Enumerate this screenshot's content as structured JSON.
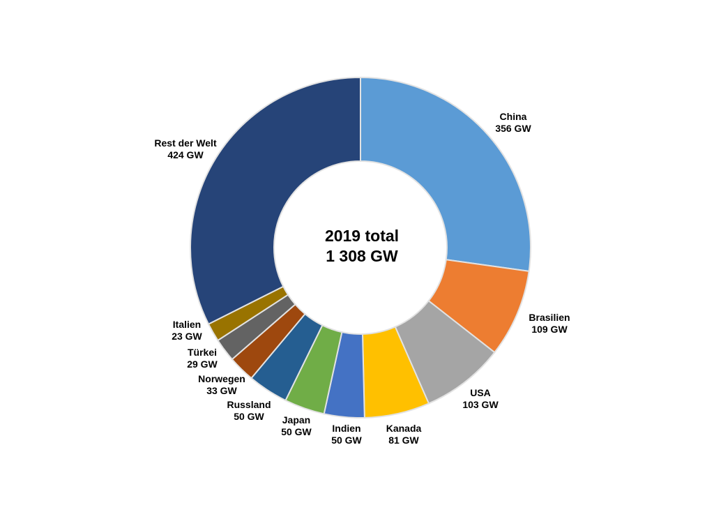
{
  "chart_data": {
    "type": "pie",
    "variant": "donut",
    "center_label": {
      "line1": "2019 total",
      "line2": "1 308 GW"
    },
    "unit": "GW",
    "slices": [
      {
        "name": "China",
        "value": 356,
        "label": "356 GW",
        "color": "#5B9BD5"
      },
      {
        "name": "Brasilien",
        "value": 109,
        "label": "109 GW",
        "color": "#ED7D31"
      },
      {
        "name": "USA",
        "value": 103,
        "label": "103 GW",
        "color": "#A5A5A5"
      },
      {
        "name": "Kanada",
        "value": 81,
        "label": "81 GW",
        "color": "#FFC000"
      },
      {
        "name": "Indien",
        "value": 50,
        "label": "50 GW",
        "color": "#4472C4"
      },
      {
        "name": "Japan",
        "value": 50,
        "label": "50 GW",
        "color": "#70AD47"
      },
      {
        "name": "Russland",
        "value": 50,
        "label": "50 GW",
        "color": "#255E91"
      },
      {
        "name": "Norwegen",
        "value": 33,
        "label": "33 GW",
        "color": "#9E480E"
      },
      {
        "name": "Türkei",
        "value": 29,
        "label": "29 GW",
        "color": "#636363"
      },
      {
        "name": "Italien",
        "value": 23,
        "label": "23 GW",
        "color": "#997300"
      },
      {
        "name": "Rest der Welt",
        "value": 424,
        "label": "424 GW",
        "color": "#264478"
      }
    ],
    "start_angle_deg": 0,
    "direction": "clockwise"
  }
}
